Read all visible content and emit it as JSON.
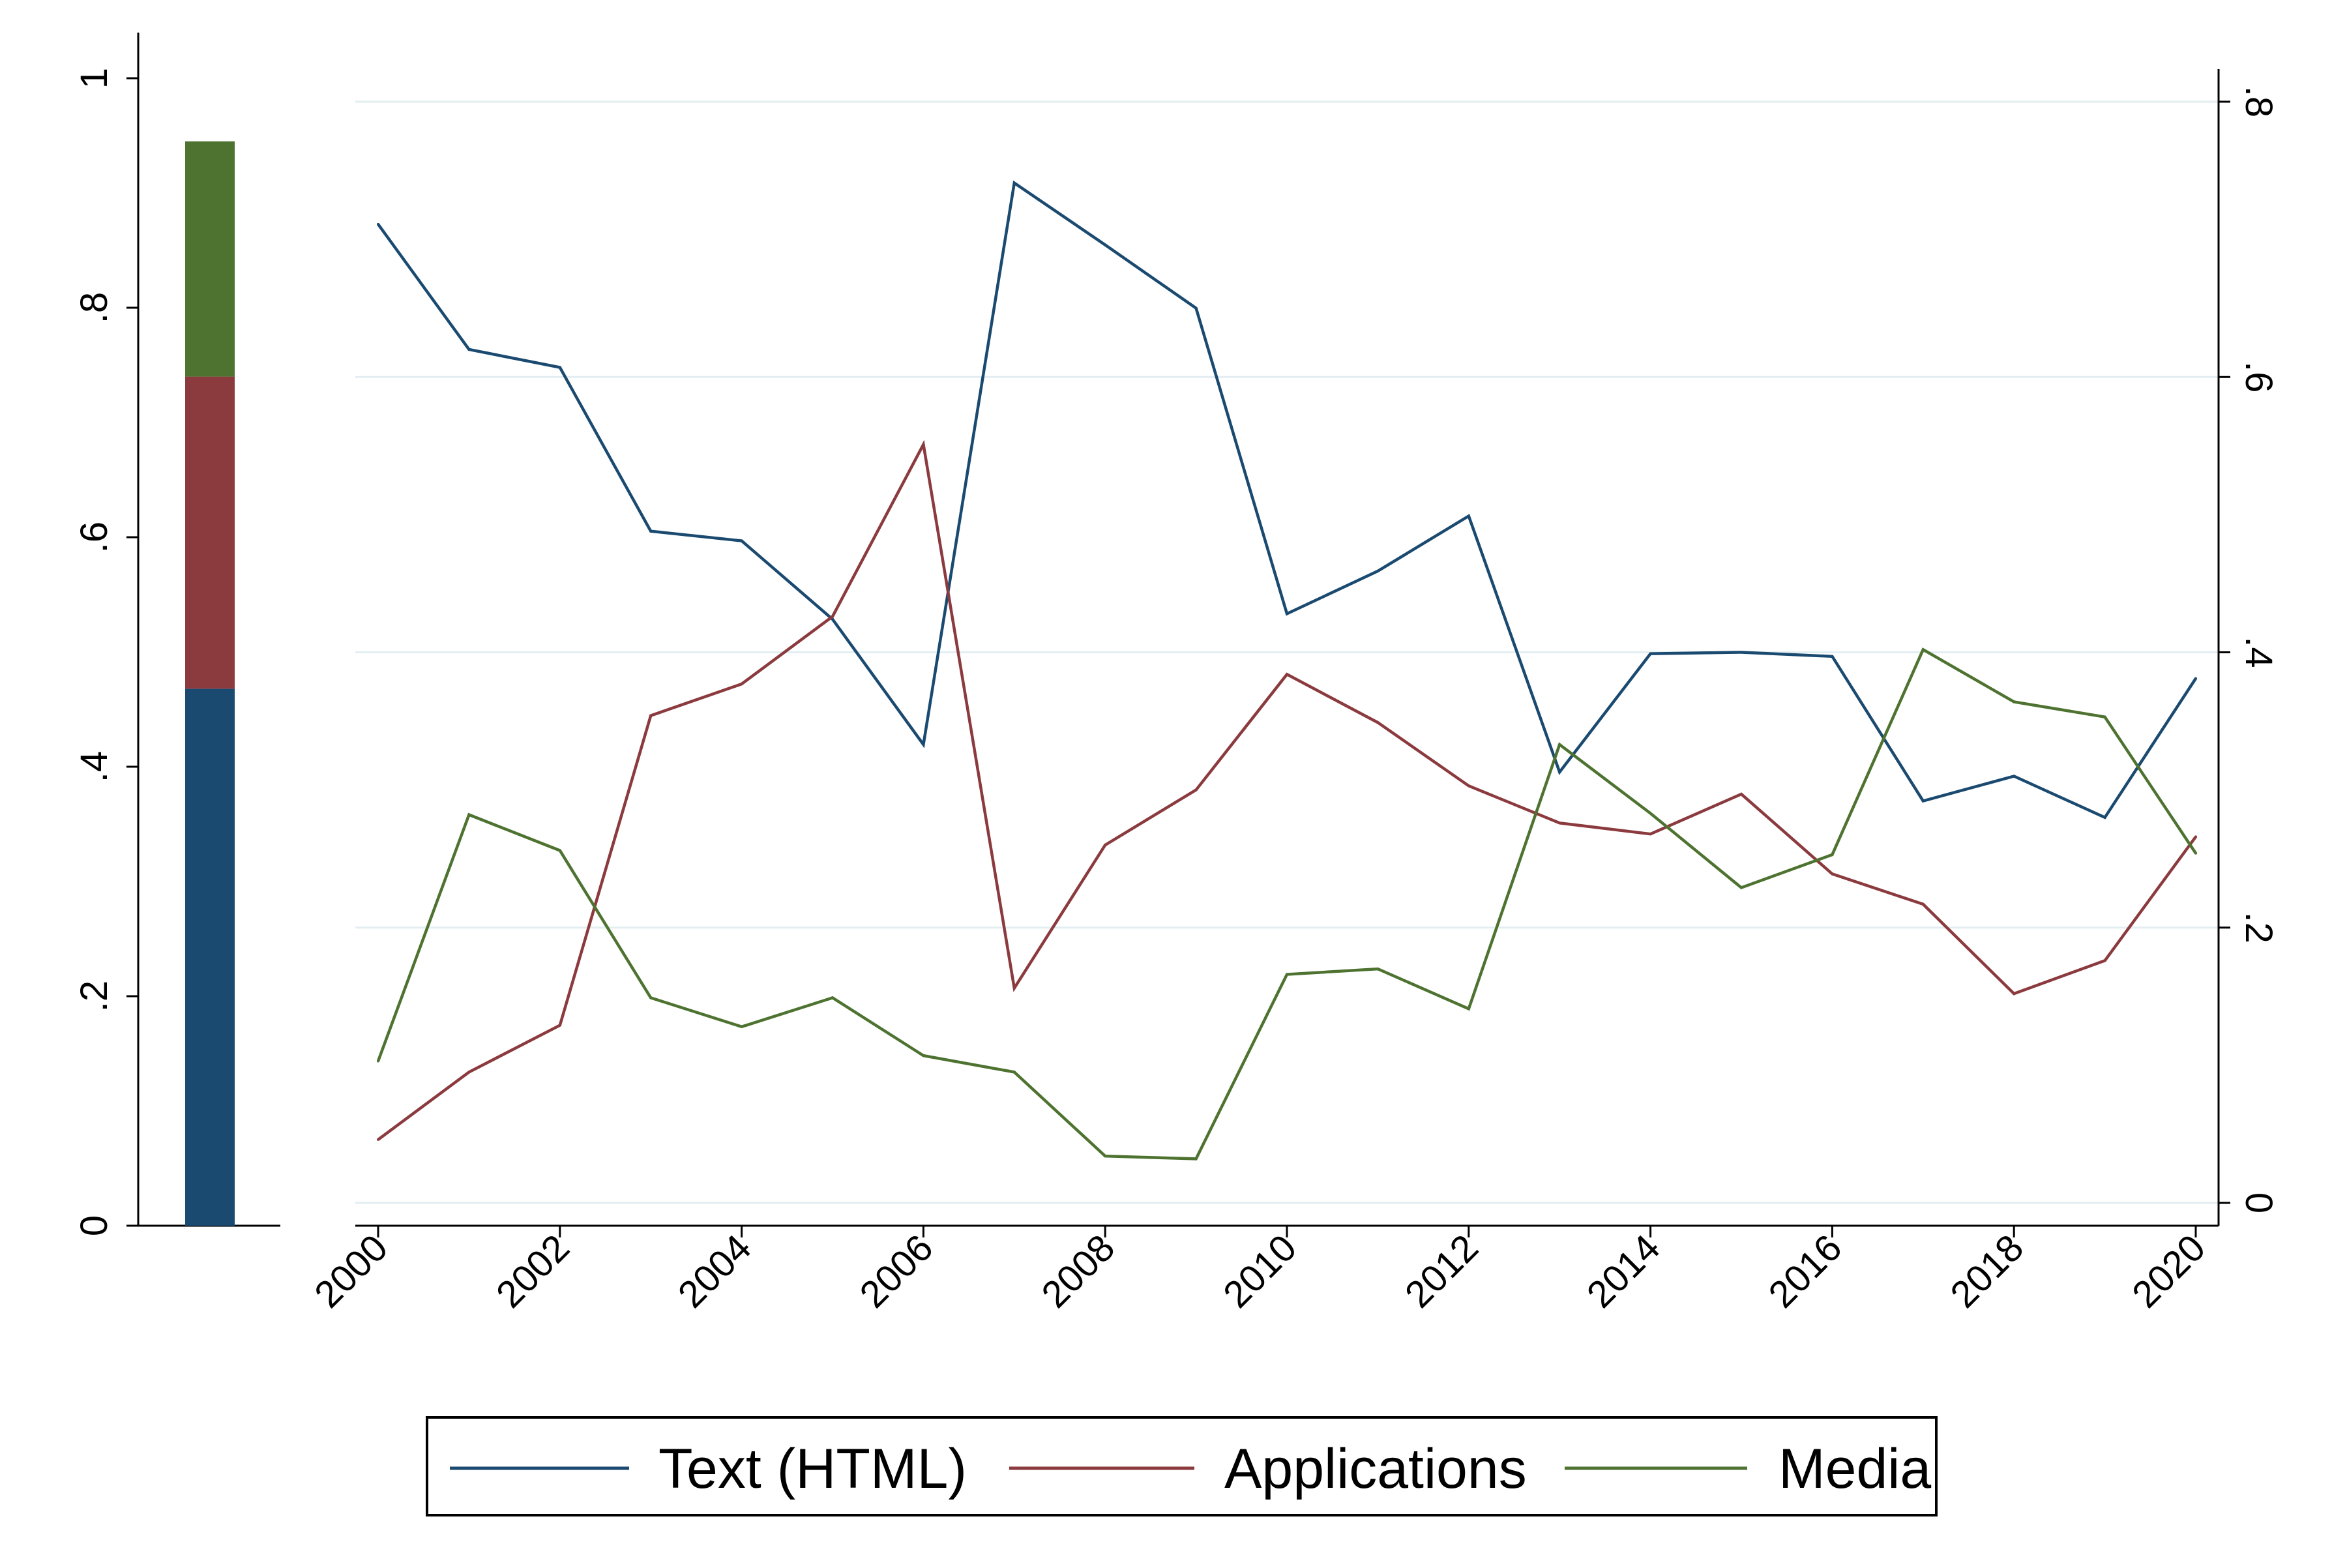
{
  "chart_data": [
    {
      "type": "bar",
      "stacked": true,
      "categories": [
        ""
      ],
      "series": [
        {
          "key": "text",
          "values": [
            0.468
          ]
        },
        {
          "key": "applications",
          "values": [
            0.272
          ]
        },
        {
          "key": "media",
          "values": [
            0.205
          ]
        }
      ],
      "ylim": [
        0,
        1
      ],
      "yticks": [
        0,
        0.2,
        0.4,
        0.6,
        0.8,
        1
      ],
      "ytick_labels": [
        "0",
        ".2",
        ".4",
        ".6",
        ".8",
        "1"
      ],
      "grid": false
    },
    {
      "type": "line",
      "x": [
        2000,
        2001,
        2002,
        2003,
        2004,
        2005,
        2006,
        2007,
        2008,
        2009,
        2010,
        2011,
        2012,
        2013,
        2014,
        2015,
        2016,
        2017,
        2018,
        2019,
        2020
      ],
      "xticks": [
        2000,
        2002,
        2004,
        2006,
        2008,
        2010,
        2012,
        2014,
        2016,
        2018,
        2020
      ],
      "xtick_labels": [
        "2000",
        "2002",
        "2004",
        "2006",
        "2008",
        "2010",
        "2012",
        "2014",
        "2016",
        "2018",
        "2020"
      ],
      "series": [
        {
          "key": "text",
          "name": "Text (HTML)",
          "values": [
            0.711,
            0.62,
            0.607,
            0.488,
            0.481,
            0.424,
            0.333,
            0.741,
            0.696,
            0.65,
            0.428,
            0.459,
            0.499,
            0.313,
            0.399,
            0.4,
            0.397,
            0.292,
            0.31,
            0.28,
            0.381
          ]
        },
        {
          "key": "applications",
          "name": "Applications",
          "values": [
            0.046,
            0.095,
            0.129,
            0.354,
            0.377,
            0.426,
            0.551,
            0.156,
            0.26,
            0.3,
            0.384,
            0.349,
            0.303,
            0.276,
            0.268,
            0.297,
            0.239,
            0.217,
            0.152,
            0.176,
            0.266
          ]
        },
        {
          "key": "media",
          "name": "Media",
          "values": [
            0.103,
            0.282,
            0.256,
            0.149,
            0.128,
            0.149,
            0.107,
            0.095,
            0.034,
            0.032,
            0.166,
            0.17,
            0.141,
            0.333,
            0.283,
            0.229,
            0.253,
            0.402,
            0.364,
            0.353,
            0.254
          ]
        }
      ],
      "ylim": [
        0,
        0.8
      ],
      "yticks": [
        0,
        0.2,
        0.4,
        0.6,
        0.8
      ],
      "ytick_labels": [
        "0",
        ".2",
        ".4",
        ".6",
        ".8"
      ],
      "grid": true,
      "legend": "bottom"
    }
  ],
  "colors": {
    "text": "#1b4a70",
    "applications": "#8b3a3e",
    "media": "#4e7331",
    "grid": "#e3eef2",
    "axis": "#000000"
  },
  "legend": [
    {
      "key": "text",
      "label": "Text (HTML)"
    },
    {
      "key": "applications",
      "label": "Applications"
    },
    {
      "key": "media",
      "label": "Media"
    }
  ]
}
